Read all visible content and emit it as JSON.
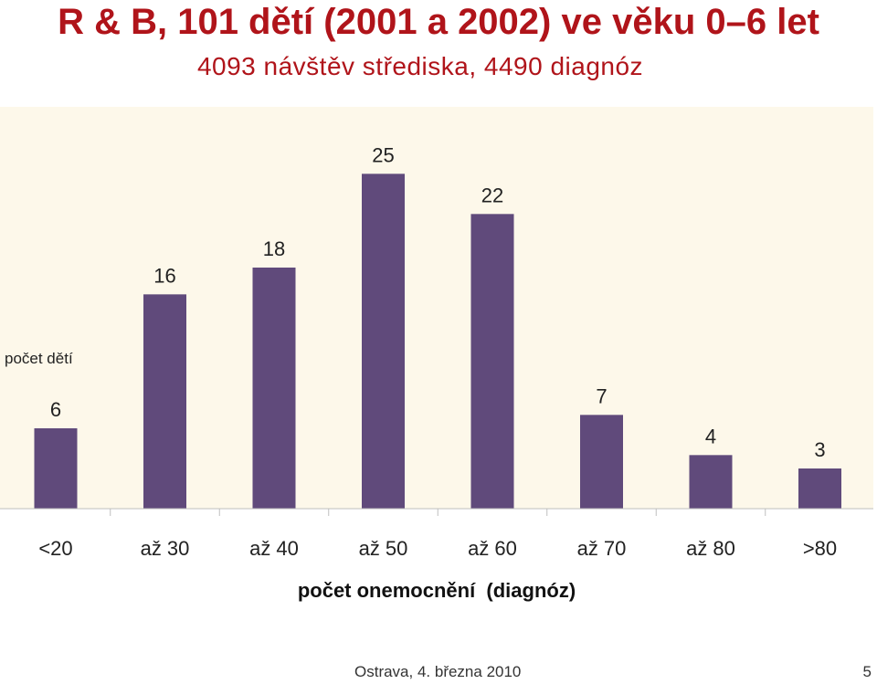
{
  "slide": {
    "title": "R & B, 101 dětí (2001 a 2002) ve věku 0–6 let",
    "subtitle": "4093 návštěv střediska, 4490 diagnóz",
    "footer": "Ostrava, 4. března 2010",
    "page_number": "5"
  },
  "colors": {
    "title": "#b0141a",
    "bar": "#604a7b",
    "plot_background": "#fdf8ea"
  },
  "chart_data": {
    "type": "bar",
    "categories": [
      "<20",
      "až 30",
      "až 40",
      "až 50",
      "až 60",
      "až 70",
      "až 80",
      ">80"
    ],
    "values": [
      6,
      16,
      18,
      25,
      22,
      7,
      4,
      3
    ],
    "title": "",
    "xlabel": "počet onemocnění  (diagnóz)",
    "ylabel": "počet dětí",
    "ylim": [
      0,
      30
    ],
    "grid": false,
    "data_labels": true
  }
}
